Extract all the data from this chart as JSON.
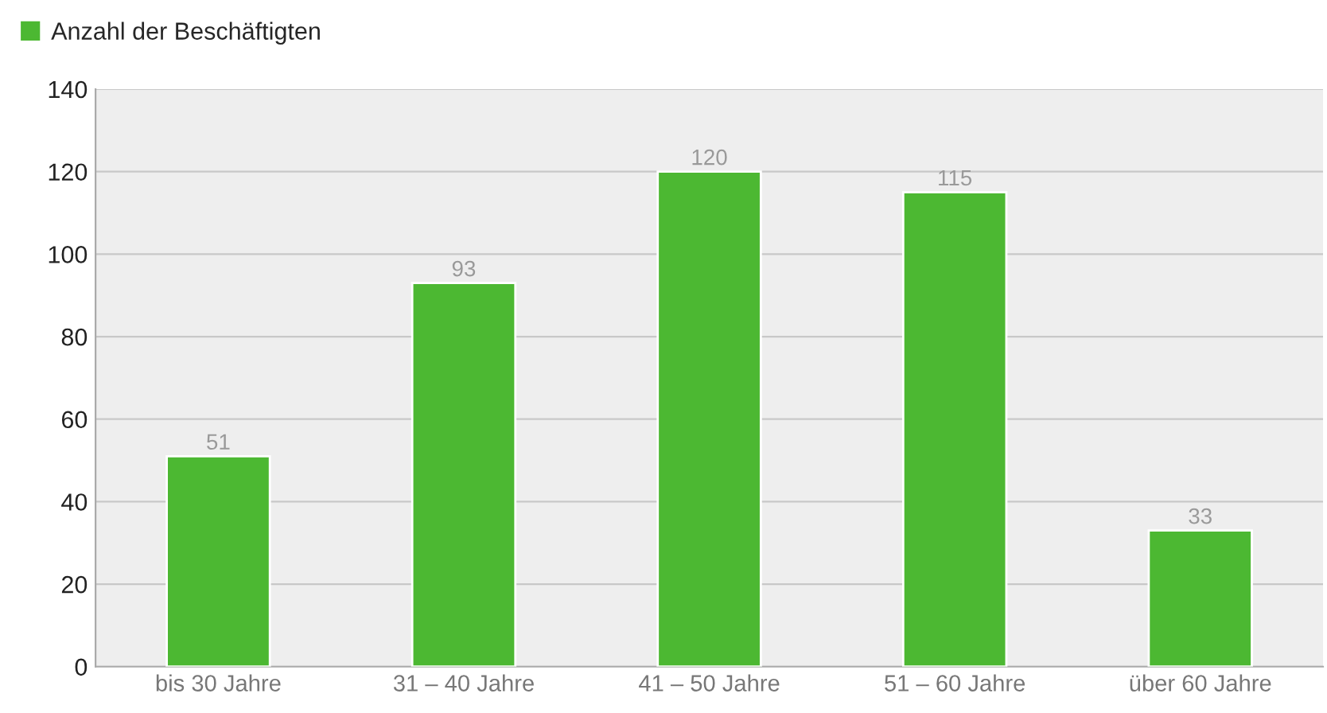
{
  "chart_data": {
    "type": "bar",
    "categories": [
      "bis 30 Jahre",
      "31 – 40 Jahre",
      "41 – 50 Jahre",
      "51 – 60 Jahre",
      "über 60 Jahre"
    ],
    "series": [
      {
        "name": "Anzahl der Beschäftigten",
        "color": "#4cb832",
        "values": [
          51,
          93,
          120,
          115,
          33
        ]
      }
    ],
    "ylim": [
      0,
      140
    ],
    "yticks": [
      0,
      20,
      40,
      60,
      80,
      100,
      120,
      140
    ],
    "grid": "y",
    "legend": "top left",
    "data_labels": true
  }
}
